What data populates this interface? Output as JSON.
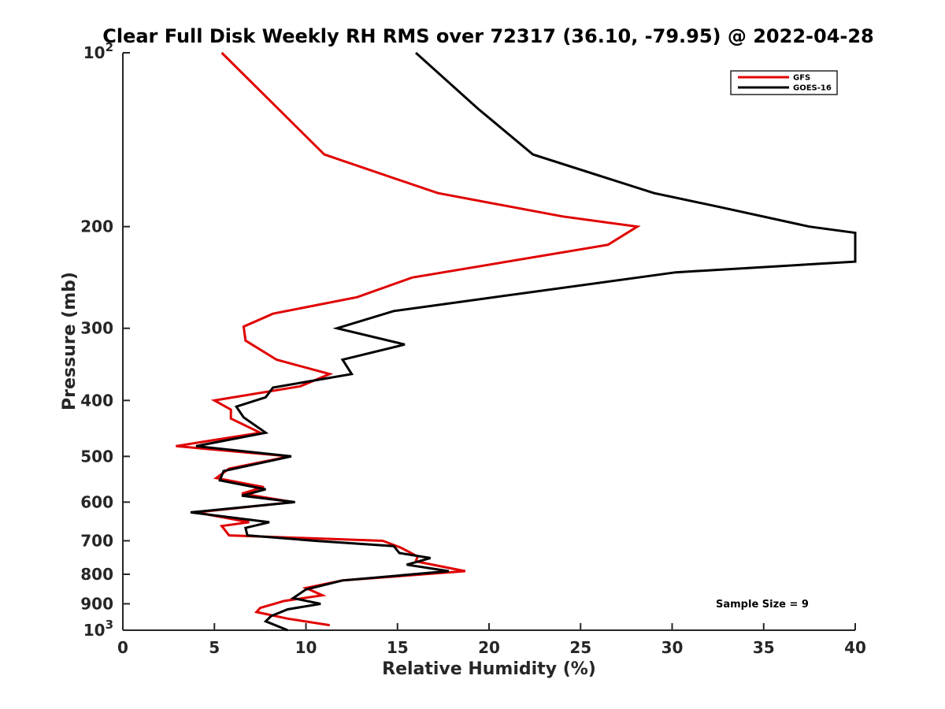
{
  "chart_data": {
    "type": "line",
    "title": "Clear Full Disk Weekly RH RMS over 72317 (36.10, -79.95) @ 2022-04-28",
    "xlabel": "Relative Humidity (%)",
    "ylabel": "Pressure (mb)",
    "xlim": [
      0,
      40
    ],
    "ylim": [
      100,
      1000
    ],
    "y_scale": "log",
    "y_reversed": true,
    "x_ticks": [
      0,
      5,
      10,
      15,
      20,
      25,
      30,
      35,
      40
    ],
    "y_ticks": [
      {
        "value": 100,
        "label": "10",
        "sup": "2"
      },
      {
        "value": 200,
        "label": "200",
        "sup": ""
      },
      {
        "value": 300,
        "label": "300",
        "sup": ""
      },
      {
        "value": 400,
        "label": "400",
        "sup": ""
      },
      {
        "value": 500,
        "label": "500",
        "sup": ""
      },
      {
        "value": 600,
        "label": "600",
        "sup": ""
      },
      {
        "value": 700,
        "label": "700",
        "sup": ""
      },
      {
        "value": 800,
        "label": "800",
        "sup": ""
      },
      {
        "value": 900,
        "label": "900",
        "sup": ""
      },
      {
        "value": 1000,
        "label": "10",
        "sup": "3"
      }
    ],
    "grid": false,
    "legend_position": "top-right",
    "annotation": "Sample Size = 9",
    "series": [
      {
        "name": "GFS",
        "color": "#e00000",
        "points": [
          [
            5.4,
            100
          ],
          [
            11.0,
            150
          ],
          [
            17.2,
            175
          ],
          [
            24.0,
            192
          ],
          [
            28.1,
            200
          ],
          [
            26.5,
            215
          ],
          [
            15.8,
            245
          ],
          [
            12.8,
            265
          ],
          [
            8.2,
            283
          ],
          [
            6.6,
            298
          ],
          [
            6.7,
            315
          ],
          [
            8.4,
            340
          ],
          [
            11.3,
            360
          ],
          [
            9.7,
            378
          ],
          [
            5.0,
            400
          ],
          [
            5.9,
            415
          ],
          [
            5.9,
            430
          ],
          [
            7.5,
            455
          ],
          [
            2.9,
            480
          ],
          [
            9.1,
            500
          ],
          [
            5.8,
            525
          ],
          [
            5.1,
            545
          ],
          [
            7.7,
            565
          ],
          [
            6.5,
            580
          ],
          [
            9.3,
            600
          ],
          [
            4.0,
            625
          ],
          [
            6.9,
            650
          ],
          [
            5.4,
            660
          ],
          [
            5.8,
            685
          ],
          [
            14.2,
            700
          ],
          [
            15.2,
            720
          ],
          [
            16.1,
            745
          ],
          [
            16.0,
            760
          ],
          [
            18.7,
            790
          ],
          [
            12.0,
            820
          ],
          [
            10.0,
            845
          ],
          [
            10.9,
            870
          ],
          [
            8.8,
            890
          ],
          [
            7.5,
            915
          ],
          [
            7.3,
            930
          ],
          [
            9.0,
            955
          ],
          [
            11.3,
            980
          ]
        ]
      },
      {
        "name": "GOES-16",
        "color": "#000000",
        "points": [
          [
            16.0,
            100
          ],
          [
            19.4,
            125
          ],
          [
            22.4,
            150
          ],
          [
            29.0,
            175
          ],
          [
            32.6,
            185
          ],
          [
            37.5,
            200
          ],
          [
            40.0,
            205
          ],
          [
            40.0,
            230
          ],
          [
            30.2,
            240
          ],
          [
            14.8,
            280
          ],
          [
            11.7,
            300
          ],
          [
            15.4,
            320
          ],
          [
            12.0,
            340
          ],
          [
            12.5,
            360
          ],
          [
            8.2,
            380
          ],
          [
            7.8,
            395
          ],
          [
            6.2,
            410
          ],
          [
            6.6,
            428
          ],
          [
            7.8,
            455
          ],
          [
            4.0,
            480
          ],
          [
            9.2,
            500
          ],
          [
            5.5,
            530
          ],
          [
            5.3,
            550
          ],
          [
            7.8,
            570
          ],
          [
            6.5,
            585
          ],
          [
            9.4,
            600
          ],
          [
            3.7,
            625
          ],
          [
            8.0,
            650
          ],
          [
            6.7,
            665
          ],
          [
            6.8,
            685
          ],
          [
            10.5,
            700
          ],
          [
            14.8,
            715
          ],
          [
            15.1,
            735
          ],
          [
            16.8,
            750
          ],
          [
            15.5,
            770
          ],
          [
            17.8,
            790
          ],
          [
            12.0,
            820
          ],
          [
            10.0,
            850
          ],
          [
            9.3,
            880
          ],
          [
            10.8,
            900
          ],
          [
            9.0,
            920
          ],
          [
            8.1,
            945
          ],
          [
            7.8,
            965
          ],
          [
            9.0,
            1000
          ]
        ]
      }
    ]
  }
}
